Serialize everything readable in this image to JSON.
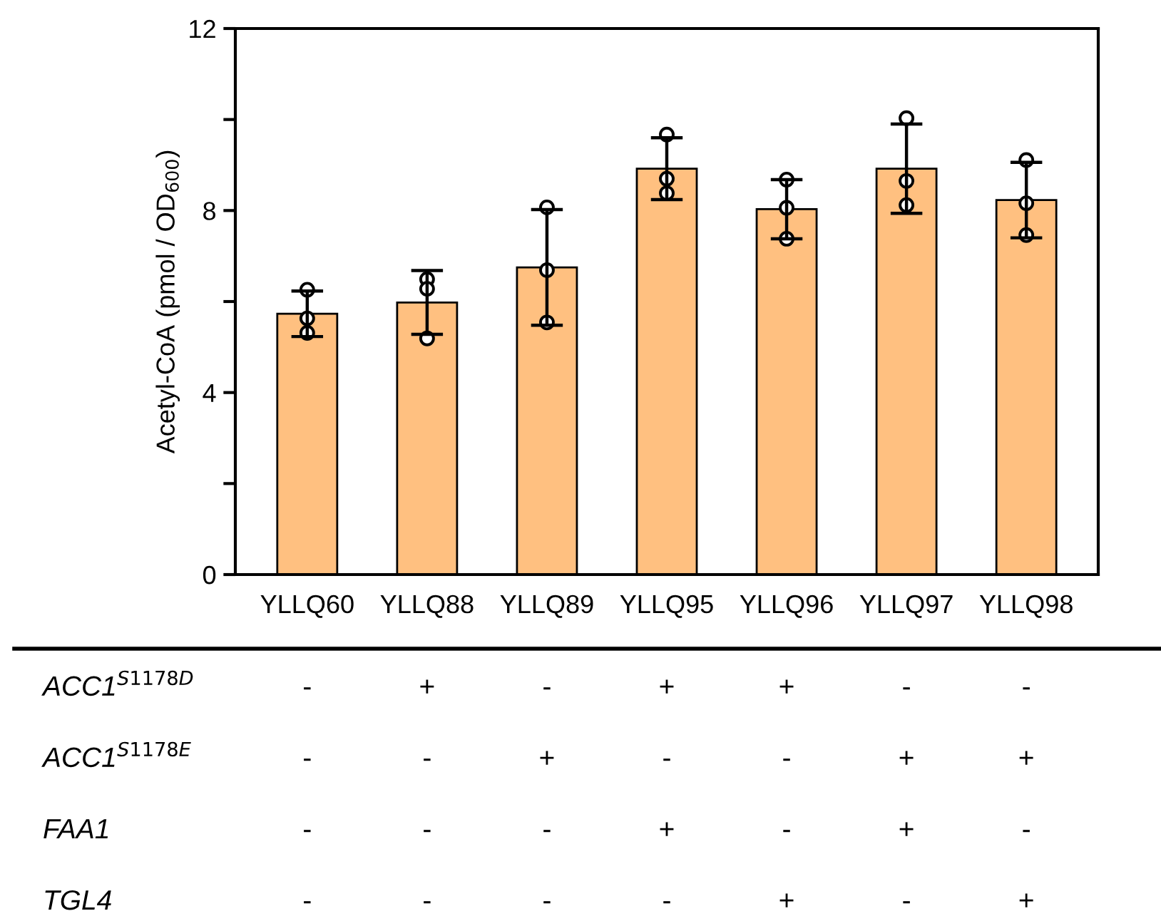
{
  "chart_data": {
    "type": "bar",
    "ylabel": "Acetyl-CoA (pmol / OD$_{600}$)",
    "categories": [
      "YLLQ60",
      "YLLQ88",
      "YLLQ89",
      "YLLQ95",
      "YLLQ96",
      "YLLQ97",
      "YLLQ98"
    ],
    "series": [
      {
        "color": "#ffc080",
        "values": [
          5.73,
          5.98,
          6.75,
          8.92,
          8.03,
          8.92,
          8.23
        ],
        "errors": [
          0.5,
          0.7,
          1.27,
          0.68,
          0.65,
          0.98,
          0.83
        ]
      },
      {
        "type": "scatter",
        "color": "#ffffff",
        "x": [
          "YLLQ60",
          "YLLQ60",
          "YLLQ60",
          "YLLQ88",
          "YLLQ88",
          "YLLQ88",
          "YLLQ89",
          "YLLQ89",
          "YLLQ89",
          "YLLQ95",
          "YLLQ95",
          "YLLQ95",
          "YLLQ96",
          "YLLQ96",
          "YLLQ96",
          "YLLQ97",
          "YLLQ97",
          "YLLQ97",
          "YLLQ98",
          "YLLQ98",
          "YLLQ98"
        ],
        "values": [
          6.26,
          5.63,
          5.31,
          6.49,
          6.28,
          5.19,
          8.07,
          6.69,
          5.54,
          9.67,
          8.7,
          8.38,
          8.68,
          8.06,
          7.38,
          10.03,
          8.65,
          8.12,
          9.11,
          8.16,
          7.46
        ]
      }
    ],
    "marker": "circle",
    "ylim": [
      0,
      12
    ],
    "yticks": [
      0,
      {
        "value": 2,
        "label": null
      },
      4,
      {
        "value": 6,
        "label": null
      },
      8,
      {
        "value": 10,
        "label": null
      },
      12
    ],
    "grid": false,
    "annotations": [
      "ACC1$^{S1178D}$",
      "-",
      "+",
      "-",
      "+",
      "+",
      "-",
      "-",
      "ACC1$^{S1178E}$",
      "-",
      "-",
      "+",
      "-",
      "-",
      "+",
      "+",
      "FAA1",
      "-",
      "-",
      "-",
      "+",
      "-",
      "+",
      "-",
      "TGL4",
      "-",
      "-",
      "-",
      "-",
      "+",
      "-",
      "+"
    ]
  }
}
